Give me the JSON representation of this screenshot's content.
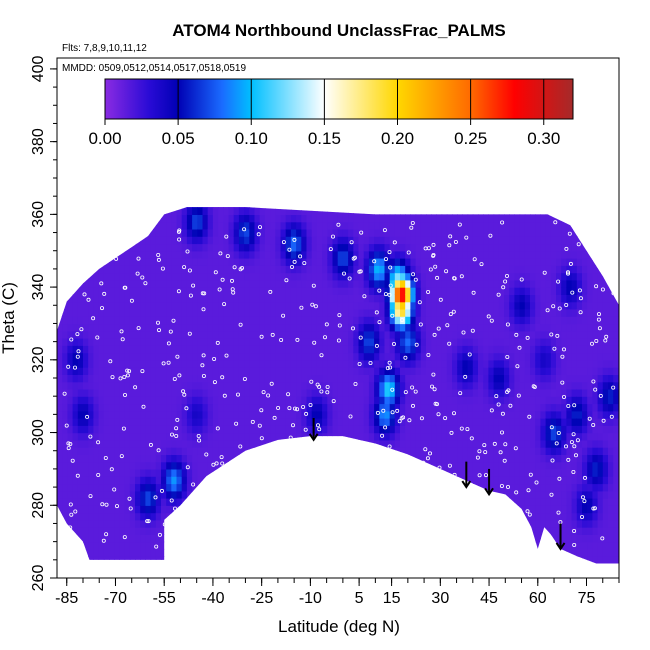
{
  "chart_data": {
    "type": "heatmap",
    "title": "ATOM4 Northbound UnclassFrac_PALMS",
    "subtitle_flights": "Flts: 7,8,9,10,11,12",
    "subtitle_dates": "MMDD: 0509,0512,0514,0517,0518,0519",
    "xlabel": "Latitude (deg N)",
    "ylabel": "Theta (C)",
    "xlim": [
      -88,
      85
    ],
    "ylim": [
      260,
      403
    ],
    "x_ticks": [
      -85,
      -70,
      -55,
      -40,
      -25,
      -10,
      5,
      15,
      30,
      45,
      60,
      75
    ],
    "x_tick_labels": [
      "-85",
      "-70",
      "-55",
      "-40",
      "-25",
      "-10",
      "5",
      "15",
      "30",
      "45",
      "60",
      "75"
    ],
    "y_ticks": [
      260,
      280,
      300,
      320,
      340,
      360,
      380,
      400
    ],
    "y_tick_labels": [
      "260",
      "280",
      "300",
      "320",
      "340",
      "360",
      "380",
      "400"
    ],
    "colorbar": {
      "range": [
        0.0,
        0.32
      ],
      "ticks": [
        0.0,
        0.05,
        0.1,
        0.15,
        0.2,
        0.25,
        0.3
      ],
      "tick_labels": [
        "0.00",
        "0.05",
        "0.10",
        "0.15",
        "0.20",
        "0.25",
        "0.30"
      ],
      "stops": [
        {
          "v": 0.0,
          "color": "#8a2be2"
        },
        {
          "v": 0.03,
          "color": "#2a0bd6"
        },
        {
          "v": 0.05,
          "color": "#0000b4"
        },
        {
          "v": 0.08,
          "color": "#1a6bff"
        },
        {
          "v": 0.1,
          "color": "#00bfff"
        },
        {
          "v": 0.15,
          "color": "#ffffff"
        },
        {
          "v": 0.2,
          "color": "#ffd700"
        },
        {
          "v": 0.25,
          "color": "#ff6a00"
        },
        {
          "v": 0.28,
          "color": "#ff0000"
        },
        {
          "v": 0.32,
          "color": "#a52a2a"
        }
      ]
    },
    "upper_boundary": [
      [
        -88,
        328
      ],
      [
        -85,
        336
      ],
      [
        -80,
        341
      ],
      [
        -75,
        345
      ],
      [
        -70,
        348
      ],
      [
        -65,
        351
      ],
      [
        -60,
        354
      ],
      [
        -55,
        360
      ],
      [
        -48,
        362
      ],
      [
        -30,
        362
      ],
      [
        -10,
        361
      ],
      [
        10,
        360
      ],
      [
        25,
        360
      ],
      [
        40,
        360
      ],
      [
        55,
        360
      ],
      [
        63,
        360
      ],
      [
        70,
        357
      ],
      [
        75,
        350
      ],
      [
        80,
        343
      ],
      [
        85,
        335
      ]
    ],
    "lower_boundary": [
      [
        -88,
        280
      ],
      [
        -85,
        275
      ],
      [
        -80,
        270
      ],
      [
        -78,
        265
      ],
      [
        -55,
        265
      ],
      [
        -55,
        276
      ],
      [
        -50,
        280
      ],
      [
        -42,
        288
      ],
      [
        -30,
        295
      ],
      [
        -20,
        298
      ],
      [
        -10,
        299
      ],
      [
        0,
        299
      ],
      [
        10,
        297
      ],
      [
        20,
        294
      ],
      [
        30,
        290
      ],
      [
        40,
        286
      ],
      [
        45,
        284
      ],
      [
        50,
        283
      ],
      [
        55,
        279
      ],
      [
        58,
        274
      ],
      [
        60,
        268
      ],
      [
        62,
        274
      ],
      [
        64,
        272
      ],
      [
        67,
        268
      ],
      [
        72,
        266
      ],
      [
        78,
        264
      ],
      [
        85,
        264
      ]
    ],
    "background_value": 0.015,
    "hotspots": [
      {
        "lat": 18,
        "theta": 338,
        "value": 0.29
      },
      {
        "lat": 18,
        "theta": 334,
        "value": 0.2
      },
      {
        "lat": 17,
        "theta": 342,
        "value": 0.13
      },
      {
        "lat": 11,
        "theta": 345,
        "value": 0.1
      },
      {
        "lat": 14,
        "theta": 312,
        "value": 0.11
      },
      {
        "lat": 13,
        "theta": 305,
        "value": 0.09
      },
      {
        "lat": 8,
        "theta": 325,
        "value": 0.07
      },
      {
        "lat": 20,
        "theta": 325,
        "value": 0.08
      },
      {
        "lat": -15,
        "theta": 352,
        "value": 0.08
      },
      {
        "lat": -30,
        "theta": 355,
        "value": 0.07
      },
      {
        "lat": -45,
        "theta": 358,
        "value": 0.07
      },
      {
        "lat": 0,
        "theta": 348,
        "value": 0.07
      },
      {
        "lat": -52,
        "theta": 287,
        "value": 0.09
      },
      {
        "lat": -60,
        "theta": 282,
        "value": 0.07
      },
      {
        "lat": -80,
        "theta": 305,
        "value": 0.05
      },
      {
        "lat": -82,
        "theta": 320,
        "value": 0.05
      },
      {
        "lat": -45,
        "theta": 305,
        "value": 0.04
      },
      {
        "lat": -8,
        "theta": 305,
        "value": 0.05
      },
      {
        "lat": 38,
        "theta": 318,
        "value": 0.05
      },
      {
        "lat": 48,
        "theta": 315,
        "value": 0.05
      },
      {
        "lat": 65,
        "theta": 300,
        "value": 0.07
      },
      {
        "lat": 72,
        "theta": 305,
        "value": 0.06
      },
      {
        "lat": 78,
        "theta": 290,
        "value": 0.06
      },
      {
        "lat": 62,
        "theta": 320,
        "value": 0.04
      },
      {
        "lat": 70,
        "theta": 340,
        "value": 0.05
      },
      {
        "lat": 55,
        "theta": 335,
        "value": 0.05
      },
      {
        "lat": 82,
        "theta": 310,
        "value": 0.06
      },
      {
        "lat": 75,
        "theta": 280,
        "value": 0.05
      }
    ],
    "arrow_markers": [
      {
        "lat": -9,
        "theta_start": 304,
        "theta_end": 298
      },
      {
        "lat": 38,
        "theta_start": 292,
        "theta_end": 285
      },
      {
        "lat": 45,
        "theta_start": 290,
        "theta_end": 283
      },
      {
        "lat": 67,
        "theta_start": 275,
        "theta_end": 268
      }
    ],
    "sample_points_note": "open white circles mark measurement locations along flight tracks"
  }
}
